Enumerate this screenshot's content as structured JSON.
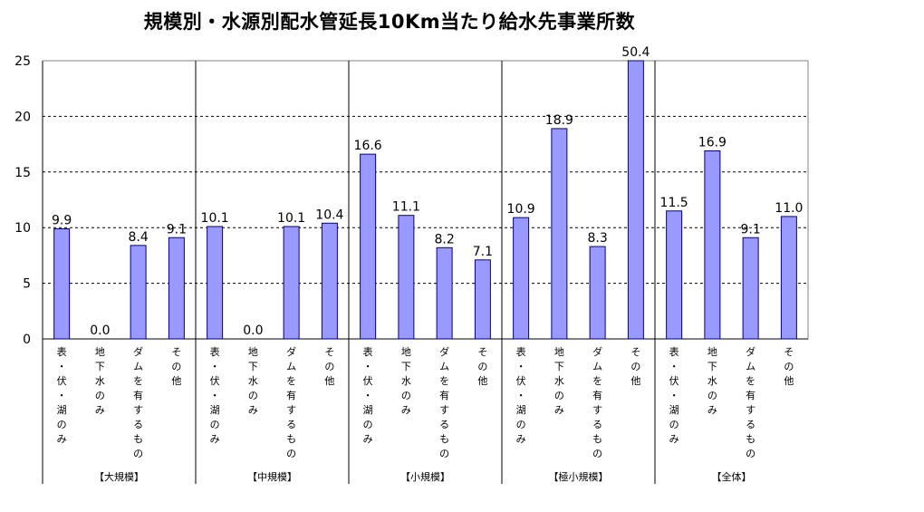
{
  "chart_data": {
    "type": "bar",
    "title": "規模別・水源別配水管延長10Km当たり給水先事業所数",
    "ylim": [
      0,
      25
    ],
    "yticks": [
      0,
      5,
      10,
      15,
      20,
      25
    ],
    "grid": true,
    "legend": "none",
    "bar_color": "#9999ff",
    "bar_stroke": "#000080",
    "groups": [
      {
        "label": "【大規模】",
        "categories": [
          "表・伏・湖のみ",
          "地下水のみ",
          "ダムを有するもの",
          "その他"
        ],
        "values": [
          9.9,
          0.0,
          8.4,
          9.1
        ],
        "value_labels": [
          "9.9",
          "0.0",
          "8.4",
          "9.1"
        ]
      },
      {
        "label": "【中規模】",
        "categories": [
          "表・伏・湖のみ",
          "地下水のみ",
          "ダムを有するもの",
          "その他"
        ],
        "values": [
          10.1,
          0.0,
          10.1,
          10.4
        ],
        "value_labels": [
          "10.1",
          "0.0",
          "10.1",
          "10.4"
        ]
      },
      {
        "label": "【小規模】",
        "categories": [
          "表・伏・湖のみ",
          "地下水のみ",
          "ダムを有するもの",
          "その他"
        ],
        "values": [
          16.6,
          11.1,
          8.2,
          7.1
        ],
        "value_labels": [
          "16.6",
          "11.1",
          "8.2",
          "7.1"
        ]
      },
      {
        "label": "【極小規模】",
        "categories": [
          "表・伏・湖のみ",
          "地下水のみ",
          "ダムを有するもの",
          "その他"
        ],
        "values": [
          10.9,
          18.9,
          8.3,
          50.4
        ],
        "value_labels": [
          "10.9",
          "18.9",
          "8.3",
          "50.4"
        ]
      },
      {
        "label": "【全体】",
        "categories": [
          "表・伏・湖のみ",
          "地下水のみ",
          "ダムを有するもの",
          "その他"
        ],
        "values": [
          11.5,
          16.9,
          9.1,
          11.0
        ],
        "value_labels": [
          "11.5",
          "16.9",
          "9.1",
          "11.0"
        ]
      }
    ]
  }
}
